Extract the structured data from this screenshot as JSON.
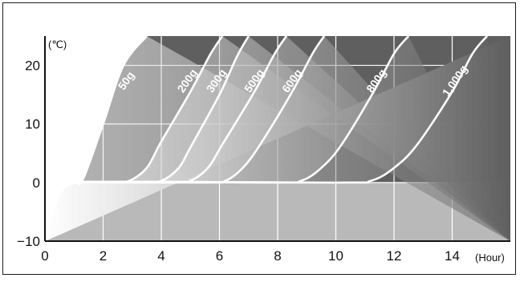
{
  "chart_data": {
    "type": "line",
    "y_unit": "(℃)",
    "x_unit": "(Hour)",
    "xlim": [
      0,
      16
    ],
    "ylim": [
      -10,
      25
    ],
    "x_ticks": [
      {
        "value": 0,
        "label": "0"
      },
      {
        "value": 2,
        "label": "2"
      },
      {
        "value": 4,
        "label": "4"
      },
      {
        "value": 6,
        "label": "6"
      },
      {
        "value": 8,
        "label": "8"
      },
      {
        "value": 10,
        "label": "10"
      },
      {
        "value": 12,
        "label": "12"
      },
      {
        "value": 14,
        "label": "14"
      }
    ],
    "y_ticks": [
      {
        "value": -10,
        "label": "−10"
      },
      {
        "value": 0,
        "label": "0"
      },
      {
        "value": 10,
        "label": "10"
      },
      {
        "value": 20,
        "label": "20"
      }
    ],
    "grid": true,
    "colors": {
      "below_zero": "#b9b9b9",
      "upper_field": "#5f5f5f",
      "curve": "#ffffff",
      "axis": "#111111"
    },
    "series": [
      {
        "label": "50g",
        "x": [
          0,
          0.5,
          1.0,
          1.3,
          2.0,
          2.7,
          3.5
        ],
        "y": [
          -10,
          -2,
          0,
          0.5,
          10,
          20,
          25
        ]
      },
      {
        "label": "200g",
        "x": [
          0,
          0.5,
          1.0,
          2.3,
          2.9,
          3.5,
          4.0,
          5.0,
          5.7,
          6.1
        ],
        "y": [
          -10,
          -2,
          0,
          0,
          0.3,
          2.5,
          7.0,
          15.5,
          22.0,
          25
        ]
      },
      {
        "label": "300g",
        "x": [
          0,
          0.5,
          1.0,
          3.3,
          4.0,
          4.6,
          5.0,
          6.0,
          6.6,
          7.0
        ],
        "y": [
          -10,
          -2,
          0,
          0,
          0.3,
          2.5,
          6.0,
          15.0,
          21.5,
          25
        ]
      },
      {
        "label": "500g",
        "x": [
          0,
          0.5,
          1.0,
          4.4,
          5.0,
          5.6,
          6.1,
          7.2,
          7.9,
          8.3
        ],
        "y": [
          -10,
          -2,
          0,
          0,
          0.3,
          2.5,
          6.5,
          15.5,
          22.0,
          25
        ]
      },
      {
        "label": "600g",
        "x": [
          0,
          0.5,
          1.0,
          5.5,
          6.2,
          6.8,
          7.4,
          8.5,
          9.2,
          9.6
        ],
        "y": [
          -10,
          -2,
          0,
          0,
          0.3,
          2.5,
          6.5,
          15.5,
          22.0,
          25
        ]
      },
      {
        "label": "800g",
        "x": [
          0,
          0.5,
          1.0,
          7.8,
          8.8,
          9.5,
          10.2,
          11.3,
          12.0,
          12.5
        ],
        "y": [
          -10,
          -2,
          0,
          0,
          0.3,
          2.5,
          6.5,
          15.5,
          22.0,
          25
        ]
      },
      {
        "label": "1,000g",
        "x": [
          0,
          0.5,
          1.0,
          10.0,
          11.2,
          12.0,
          12.8,
          14.0,
          14.7,
          15.2
        ],
        "y": [
          -10,
          -2,
          0,
          0,
          0.3,
          2.5,
          6.5,
          15.5,
          22.0,
          25
        ]
      }
    ],
    "curve_labels": [
      {
        "text": "50g",
        "x": 2.9,
        "y": 17,
        "angle": -55
      },
      {
        "text": "200g",
        "x": 5.0,
        "y": 17,
        "angle": -55
      },
      {
        "text": "300g",
        "x": 6.0,
        "y": 17,
        "angle": -55
      },
      {
        "text": "500g",
        "x": 7.3,
        "y": 17,
        "angle": -55
      },
      {
        "text": "600g",
        "x": 8.6,
        "y": 17,
        "angle": -55
      },
      {
        "text": "800g",
        "x": 11.5,
        "y": 17,
        "angle": -55
      },
      {
        "text": "1,000g",
        "x": 14.2,
        "y": 17,
        "angle": -55
      }
    ]
  }
}
